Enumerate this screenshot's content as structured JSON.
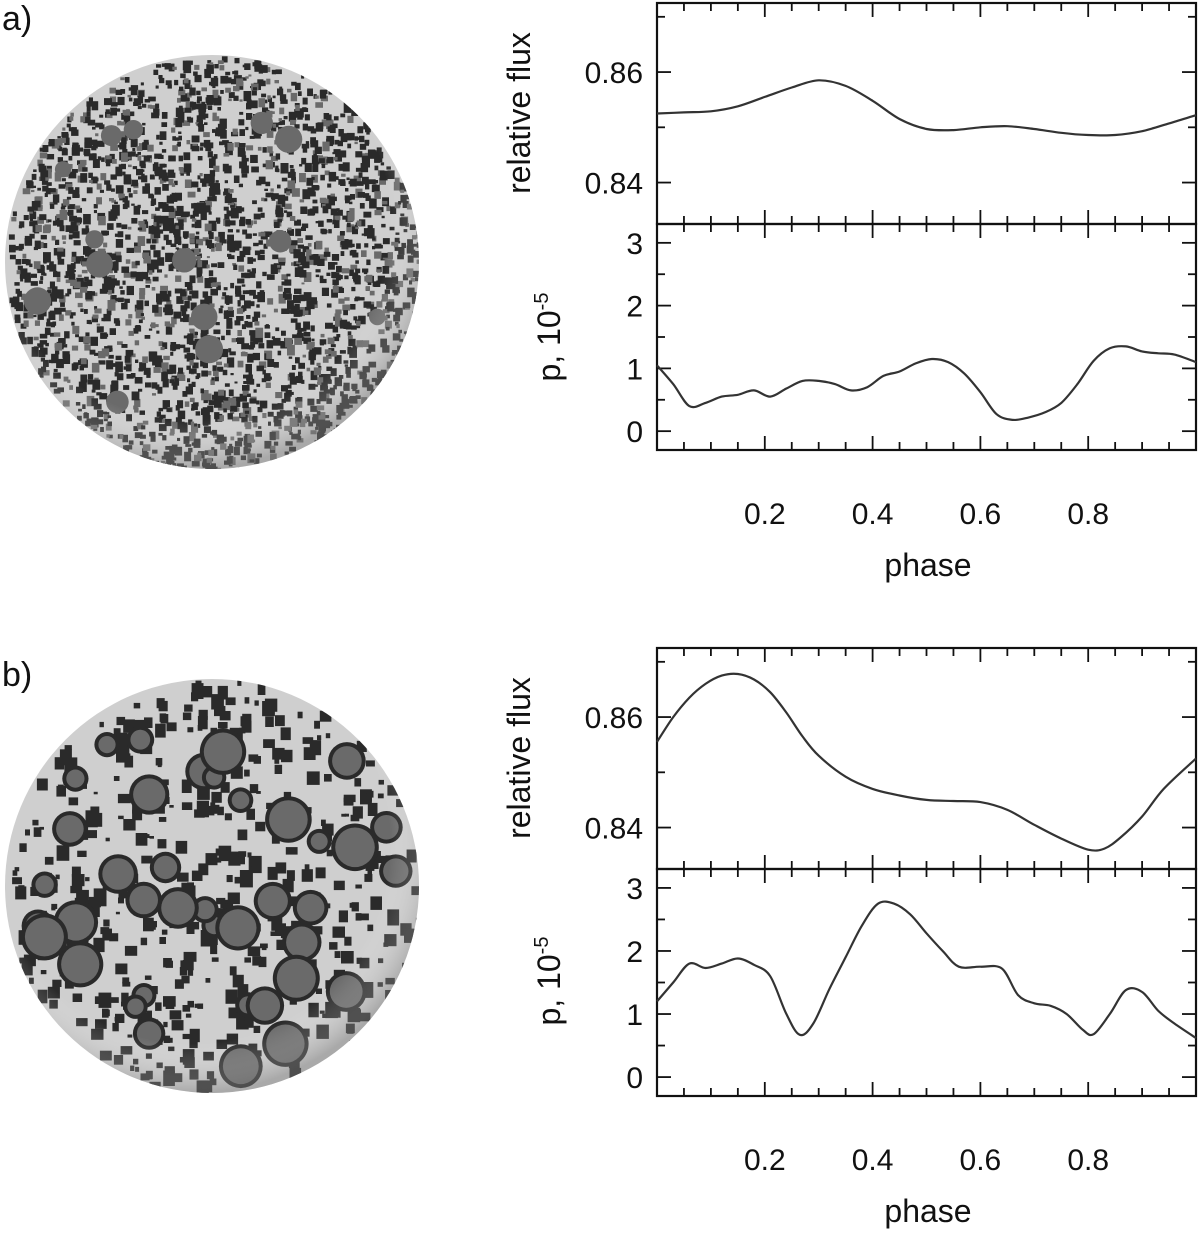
{
  "panels": [
    {
      "label": "a)"
    },
    {
      "label": "b)"
    }
  ],
  "colors": {
    "line": "#333333",
    "frame": "#111111",
    "sphere_base": "#cfcfcf",
    "spot_dark": "#2a2a2a",
    "spot_mid": "#6a6a6a"
  },
  "chart_data": [
    {
      "type": "line",
      "panel": "a)",
      "subplot": "top",
      "xlabel": "",
      "ylabel": "relative flux",
      "xlim": [
        0,
        1
      ],
      "ylim": [
        0.8325,
        0.8725
      ],
      "yticks": [
        0.84,
        0.86
      ],
      "ytick_labels": [
        "0.84",
        "0.86"
      ],
      "x": [
        0,
        0.05,
        0.1,
        0.15,
        0.2,
        0.25,
        0.3,
        0.35,
        0.4,
        0.45,
        0.5,
        0.55,
        0.6,
        0.65,
        0.7,
        0.75,
        0.8,
        0.85,
        0.9,
        0.95,
        1.0
      ],
      "y": [
        0.8525,
        0.8527,
        0.8529,
        0.8538,
        0.8555,
        0.8572,
        0.8585,
        0.8575,
        0.8548,
        0.8515,
        0.8497,
        0.8495,
        0.85,
        0.8502,
        0.8497,
        0.849,
        0.8486,
        0.8486,
        0.8493,
        0.8507,
        0.8522
      ]
    },
    {
      "type": "line",
      "panel": "a)",
      "subplot": "bottom",
      "xlabel": "phase",
      "ylabel": "p, 10",
      "ylabel_exponent": "-5",
      "xlim": [
        0,
        1
      ],
      "ylim": [
        -0.3,
        3.3
      ],
      "yticks": [
        0,
        1,
        2,
        3
      ],
      "ytick_labels": [
        "0",
        "1",
        "2",
        "3"
      ],
      "xticks": [
        0.2,
        0.4,
        0.6,
        0.8
      ],
      "xtick_labels": [
        "0.2",
        "0.4",
        "0.6",
        "0.8"
      ],
      "x": [
        0,
        0.03,
        0.06,
        0.09,
        0.12,
        0.15,
        0.18,
        0.21,
        0.24,
        0.27,
        0.3,
        0.33,
        0.36,
        0.39,
        0.42,
        0.45,
        0.48,
        0.51,
        0.54,
        0.57,
        0.6,
        0.63,
        0.66,
        0.69,
        0.72,
        0.75,
        0.78,
        0.81,
        0.84,
        0.87,
        0.9,
        0.93,
        0.96,
        1.0
      ],
      "y": [
        1.05,
        0.75,
        0.4,
        0.45,
        0.55,
        0.58,
        0.65,
        0.55,
        0.68,
        0.8,
        0.8,
        0.75,
        0.65,
        0.7,
        0.88,
        0.95,
        1.08,
        1.15,
        1.1,
        0.92,
        0.62,
        0.27,
        0.18,
        0.22,
        0.3,
        0.45,
        0.75,
        1.12,
        1.32,
        1.35,
        1.27,
        1.24,
        1.22,
        1.1
      ]
    },
    {
      "type": "line",
      "panel": "b)",
      "subplot": "top",
      "xlabel": "",
      "ylabel": "relative flux",
      "xlim": [
        0,
        1
      ],
      "ylim": [
        0.8325,
        0.8725
      ],
      "yticks": [
        0.84,
        0.86
      ],
      "ytick_labels": [
        "0.84",
        "0.86"
      ],
      "x": [
        0,
        0.03,
        0.06,
        0.09,
        0.12,
        0.15,
        0.18,
        0.21,
        0.24,
        0.27,
        0.3,
        0.35,
        0.4,
        0.45,
        0.5,
        0.55,
        0.6,
        0.65,
        0.7,
        0.75,
        0.8,
        0.83,
        0.86,
        0.9,
        0.94,
        1.0
      ],
      "y": [
        0.8555,
        0.86,
        0.8635,
        0.866,
        0.8675,
        0.8678,
        0.8668,
        0.8645,
        0.8608,
        0.8565,
        0.853,
        0.8492,
        0.847,
        0.8458,
        0.845,
        0.8448,
        0.8446,
        0.8432,
        0.8405,
        0.838,
        0.836,
        0.8362,
        0.8382,
        0.842,
        0.847,
        0.8525
      ]
    },
    {
      "type": "line",
      "panel": "b)",
      "subplot": "bottom",
      "xlabel": "phase",
      "ylabel": "p, 10",
      "ylabel_exponent": "-5",
      "xlim": [
        0,
        1
      ],
      "ylim": [
        -0.3,
        3.3
      ],
      "yticks": [
        0,
        1,
        2,
        3
      ],
      "ytick_labels": [
        "0",
        "1",
        "2",
        "3"
      ],
      "xticks": [
        0.2,
        0.4,
        0.6,
        0.8
      ],
      "xtick_labels": [
        "0.2",
        "0.4",
        "0.6",
        "0.8"
      ],
      "x": [
        0,
        0.03,
        0.06,
        0.09,
        0.12,
        0.15,
        0.18,
        0.21,
        0.24,
        0.265,
        0.29,
        0.32,
        0.35,
        0.38,
        0.41,
        0.44,
        0.47,
        0.5,
        0.53,
        0.56,
        0.6,
        0.64,
        0.67,
        0.7,
        0.73,
        0.76,
        0.79,
        0.81,
        0.84,
        0.87,
        0.9,
        0.93,
        0.96,
        1.0
      ],
      "y": [
        1.2,
        1.5,
        1.8,
        1.73,
        1.8,
        1.88,
        1.78,
        1.6,
        1.0,
        0.67,
        0.85,
        1.4,
        1.9,
        2.4,
        2.75,
        2.75,
        2.58,
        2.28,
        2.0,
        1.75,
        1.75,
        1.72,
        1.3,
        1.17,
        1.13,
        1.0,
        0.75,
        0.68,
        1.0,
        1.38,
        1.35,
        1.05,
        0.85,
        0.62
      ]
    }
  ]
}
